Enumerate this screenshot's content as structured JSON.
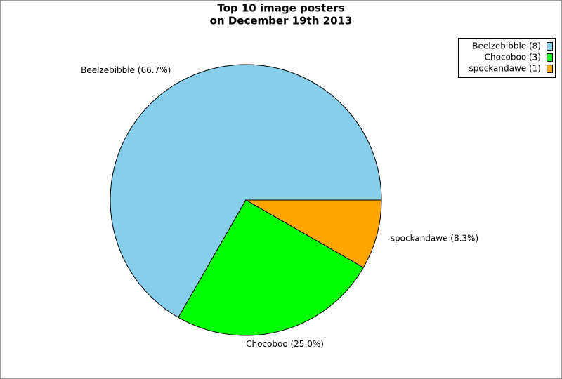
{
  "chart_data": {
    "type": "pie",
    "title": [
      "Top 10 image posters",
      "on December 19th 2013"
    ],
    "categories": [
      "Beelzebibble (8)",
      "Chocoboo (3)",
      "spockandawe (1)"
    ],
    "values": [
      66.7,
      25.0,
      8.3
    ],
    "value_labels": [
      "Beelzebibble (66.7%)",
      "Chocoboo (25.0%)",
      "spockandawe (8.3%)"
    ],
    "colors": [
      "#87ceeb",
      "#00ff00",
      "#ffa500"
    ],
    "legend": "top-right"
  }
}
